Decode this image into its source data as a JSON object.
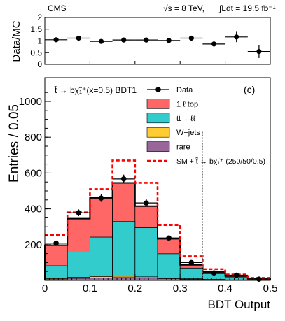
{
  "header": {
    "experiment": "CMS",
    "energy": "√s = 8 TeV,",
    "lumi": "∫Ldt = 19.5 fb⁻¹"
  },
  "panel_label": "(c)",
  "selection_label": "t̃ → bχ̃₁⁺(x=0.5) BDT1",
  "colors": {
    "one_lepton_top": "#ff6666",
    "ttbar_dilepton": "#33cccc",
    "wjets": "#ffcc33",
    "rare": "#996699",
    "signal": "#ff0000",
    "data": "#000000",
    "cut_line": "#777777"
  },
  "chart_data": [
    {
      "type": "scatter",
      "ylabel": "Data/MC",
      "ylim": [
        0,
        2
      ],
      "yticks": [
        "0",
        "0.5",
        "1",
        "1.5",
        "2"
      ],
      "x": [
        0.025,
        0.075,
        0.125,
        0.175,
        0.225,
        0.275,
        0.325,
        0.375,
        0.425,
        0.475
      ],
      "values": [
        1.05,
        1.12,
        0.98,
        1.04,
        1.04,
        1.02,
        1.12,
        0.87,
        1.17,
        0.55
      ],
      "yerr": [
        0.07,
        0.07,
        0.06,
        0.05,
        0.06,
        0.07,
        0.1,
        0.12,
        0.22,
        0.28
      ],
      "reference_line": 1
    },
    {
      "type": "bar",
      "stacked": true,
      "xlabel": "BDT Output",
      "ylabel": "Entries / 0.05",
      "xlim": [
        0,
        0.5
      ],
      "ylim": [
        0,
        1000
      ],
      "xticks": [
        "0",
        "0.1",
        "0.2",
        "0.3",
        "0.4",
        "0.5"
      ],
      "yticks": [
        "200",
        "400",
        "600",
        "800",
        "1000"
      ],
      "bin_edges": [
        0,
        0.05,
        0.1,
        0.15,
        0.2,
        0.25,
        0.3,
        0.35,
        0.4,
        0.45,
        0.5
      ],
      "series": [
        {
          "name": "rare",
          "values": [
            8,
            12,
            14,
            16,
            14,
            10,
            6,
            4,
            2,
            1
          ]
        },
        {
          "name": "W+jets",
          "values": [
            4,
            6,
            8,
            8,
            6,
            4,
            3,
            2,
            1,
            0.5
          ]
        },
        {
          "name": "tt̄→ ℓℓ",
          "values": [
            70,
            140,
            220,
            305,
            275,
            135,
            60,
            32,
            16,
            6
          ]
        },
        {
          "name": "1 ℓ top",
          "values": [
            115,
            187,
            223,
            216,
            120,
            84,
            18,
            10,
            6,
            4
          ]
        }
      ],
      "signal": {
        "name": "SM + t̃ → bχ̃₁⁺ (250/50/0.5)",
        "values": [
          255,
          380,
          510,
          670,
          545,
          310,
          135,
          63,
          33,
          14
        ]
      },
      "data": {
        "name": "Data",
        "x": [
          0.025,
          0.075,
          0.125,
          0.175,
          0.225,
          0.275,
          0.325,
          0.375,
          0.425,
          0.475
        ],
        "values": [
          208,
          378,
          460,
          567,
          433,
          237,
          100,
          42,
          29,
          7
        ],
        "yerr": [
          15,
          19,
          21,
          24,
          21,
          15,
          10,
          7,
          6,
          3
        ]
      },
      "cut_x": 0.35,
      "legend": [
        "Data",
        "1 ℓ top",
        "tt̄→ ℓℓ",
        "W+jets",
        "rare",
        "SM + t̃ → bχ̃₁⁺ (250/50/0.5)"
      ],
      "legend_position": "top-right"
    }
  ]
}
